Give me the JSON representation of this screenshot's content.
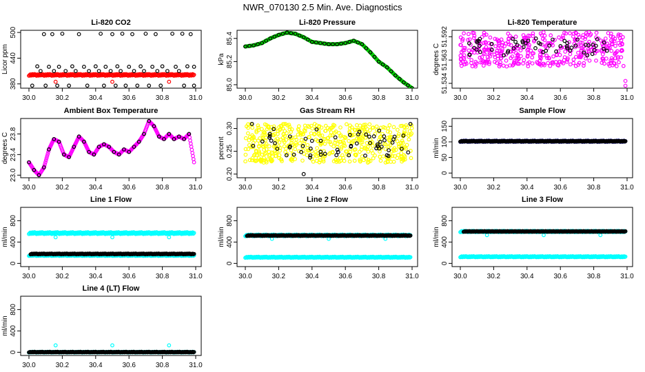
{
  "page": {
    "title": "NWR_070130  2.5 Min. Ave. Diagnostics"
  },
  "chart_data": [
    {
      "id": "co2",
      "title": "Li-820 CO2",
      "ylabel": "Licor ppm",
      "type": "scatter",
      "xlim": [
        30.0,
        31.0
      ],
      "ylim": [
        370,
        505
      ],
      "xticks": [
        "30.0",
        "30.2",
        "30.4",
        "30.6",
        "30.8",
        "31.0"
      ],
      "yticks": [
        {
          "v": 380,
          "t": "380"
        },
        {
          "v": 440,
          "t": "440"
        },
        {
          "v": 500,
          "t": "500"
        }
      ],
      "rotate_y": true,
      "series": [
        {
          "color": "#ff0000",
          "type": "band",
          "x0": 30.0,
          "x1": 30.99,
          "y0": 399,
          "y1": 403
        },
        {
          "color": "#ff0000",
          "type": "points",
          "x": [
            30.16,
            30.5,
            30.84
          ],
          "y": [
            385,
            385,
            385
          ]
        },
        {
          "color": "#000000",
          "type": "points",
          "x": [
            30.09,
            30.14,
            30.2,
            30.3,
            30.43,
            30.5,
            30.56,
            30.62,
            30.7,
            30.76,
            30.86,
            30.92,
            30.97,
            30.05,
            30.12,
            30.18,
            30.26,
            30.33,
            30.4,
            30.46,
            30.53,
            30.6,
            30.67,
            30.74,
            30.8,
            30.88,
            30.95,
            30.99,
            30.07,
            30.15,
            30.22,
            30.28,
            30.36,
            30.42,
            30.49,
            30.55,
            30.63,
            30.69,
            30.77,
            30.83,
            30.9,
            30.02,
            30.1,
            30.17,
            30.24,
            30.35,
            30.45,
            30.52,
            30.58,
            30.65,
            30.72,
            30.79,
            30.93,
            30.99
          ],
          "y": [
            496,
            496,
            497,
            496,
            497,
            496,
            497,
            496,
            497,
            496,
            497,
            497,
            496,
            421,
            420,
            420,
            421,
            420,
            421,
            420,
            421,
            420,
            421,
            420,
            421,
            420,
            421,
            420,
            410,
            410,
            410,
            410,
            410,
            410,
            410,
            410,
            410,
            410,
            410,
            410,
            410,
            376,
            376,
            376,
            376,
            376,
            376,
            376,
            376,
            376,
            376,
            376,
            376,
            376
          ]
        }
      ]
    },
    {
      "id": "pressure",
      "title": "Li-820 Pressure",
      "ylabel": "kPa",
      "type": "line-scatter",
      "xlim": [
        30.0,
        31.0
      ],
      "ylim": [
        84.97,
        85.47
      ],
      "xticks": [
        "30.0",
        "30.2",
        "30.4",
        "30.6",
        "30.8",
        "31.0"
      ],
      "yticks": [
        {
          "v": 85.0,
          "t": "85.0"
        },
        {
          "v": 85.2,
          "t": "85.2"
        },
        {
          "v": 85.4,
          "t": "85.4"
        }
      ],
      "rotate_y": true,
      "series": [
        {
          "color": "#00cc00",
          "type": "curve",
          "x": [
            30.0,
            30.05,
            30.1,
            30.15,
            30.2,
            30.25,
            30.3,
            30.35,
            30.4,
            30.45,
            30.5,
            30.55,
            30.6,
            30.65,
            30.7,
            30.75,
            30.8,
            30.85,
            30.9,
            30.95,
            31.0
          ],
          "y": [
            85.33,
            85.34,
            85.36,
            85.4,
            85.43,
            85.45,
            85.44,
            85.41,
            85.37,
            85.36,
            85.35,
            85.35,
            85.36,
            85.38,
            85.35,
            85.28,
            85.2,
            85.15,
            85.08,
            85.02,
            84.97
          ]
        },
        {
          "color": "#000000",
          "type": "sample-curve",
          "step": 0.025
        }
      ]
    },
    {
      "id": "temperature",
      "title": "Li-820 Temperature",
      "ylabel": "degrees C",
      "type": "scatter",
      "xlim": [
        30.0,
        31.0
      ],
      "ylim": [
        51.528,
        51.6
      ],
      "xticks": [
        "30.0",
        "30.2",
        "30.4",
        "30.6",
        "30.8",
        "31.0"
      ],
      "yticks": [
        {
          "v": 51.534,
          "t": "51.534"
        },
        {
          "v": 51.563,
          "t": "51.563"
        },
        {
          "v": 51.592,
          "t": "51.592"
        }
      ],
      "rotate_y": true,
      "series": [
        {
          "color": "#ff00ff",
          "type": "noise-band",
          "x0": 30.0,
          "x1": 30.98,
          "n": 420,
          "y0": 51.555,
          "y1": 51.598,
          "seed": 7
        },
        {
          "color": "#000000",
          "type": "noise-band",
          "x0": 30.02,
          "x1": 30.97,
          "n": 55,
          "y0": 51.568,
          "y1": 51.59,
          "seed": 11
        },
        {
          "color": "#ff00ff",
          "type": "points",
          "x": [
            30.99,
            30.99
          ],
          "y": [
            51.537,
            51.531
          ]
        }
      ]
    },
    {
      "id": "box-temp",
      "title": "Ambient Box Temperature",
      "ylabel": "degrees C",
      "type": "line-scatter",
      "xlim": [
        30.0,
        31.0
      ],
      "ylim": [
        22.95,
        24.1
      ],
      "xticks": [
        "30.0",
        "30.2",
        "30.4",
        "30.6",
        "30.8",
        "31.0"
      ],
      "yticks": [
        {
          "v": 23.0,
          "t": "23.0"
        },
        {
          "v": 23.4,
          "t": "23.4"
        },
        {
          "v": 23.8,
          "t": "23.8"
        }
      ],
      "rotate_y": true,
      "series": [
        {
          "color": "#ff00ff",
          "type": "curve",
          "x": [
            30.0,
            30.03,
            30.06,
            30.09,
            30.12,
            30.15,
            30.18,
            30.21,
            30.24,
            30.27,
            30.3,
            30.33,
            30.36,
            30.39,
            30.42,
            30.45,
            30.48,
            30.51,
            30.54,
            30.57,
            30.6,
            30.63,
            30.66,
            30.69,
            30.72,
            30.75,
            30.78,
            30.81,
            30.84,
            30.87,
            30.9,
            30.93,
            30.96,
            30.99
          ],
          "y": [
            23.25,
            23.1,
            23.0,
            23.15,
            23.5,
            23.7,
            23.65,
            23.4,
            23.35,
            23.55,
            23.75,
            23.65,
            23.45,
            23.4,
            23.55,
            23.6,
            23.55,
            23.45,
            23.4,
            23.5,
            23.45,
            23.55,
            23.65,
            23.8,
            24.05,
            23.95,
            23.75,
            23.7,
            23.8,
            23.7,
            23.75,
            23.7,
            23.8,
            23.25
          ]
        },
        {
          "color": "#000000",
          "type": "sample-curve",
          "step": 0.03
        }
      ]
    },
    {
      "id": "rh",
      "title": "Gas Stream RH",
      "ylabel": "percent",
      "type": "scatter",
      "xlim": [
        30.0,
        31.0
      ],
      "ylim": [
        0.192,
        0.322
      ],
      "xticks": [
        "30.0",
        "30.2",
        "30.4",
        "30.6",
        "30.8",
        "31.0"
      ],
      "yticks": [
        {
          "v": 0.2,
          "t": "0.20"
        },
        {
          "v": 0.25,
          "t": "0.25"
        },
        {
          "v": 0.3,
          "t": "0.30"
        }
      ],
      "rotate_y": true,
      "series": [
        {
          "color": "#ffff00",
          "type": "noise-band",
          "x0": 30.0,
          "x1": 31.0,
          "n": 520,
          "y0": 0.225,
          "y1": 0.31,
          "seed": 3
        },
        {
          "color": "#000000",
          "type": "noise-band",
          "x0": 30.02,
          "x1": 30.99,
          "n": 60,
          "y0": 0.235,
          "y1": 0.3,
          "seed": 5
        },
        {
          "color": "#000000",
          "type": "points",
          "x": [
            30.35,
            30.04,
            30.99
          ],
          "y": [
            0.2,
            0.31,
            0.31
          ]
        }
      ]
    },
    {
      "id": "sample-flow",
      "title": "Sample Flow",
      "ylabel": "ml/min",
      "type": "scatter",
      "xlim": [
        30.0,
        31.0
      ],
      "ylim": [
        -15,
        175
      ],
      "xticks": [
        "30.0",
        "30.2",
        "30.4",
        "30.6",
        "30.8",
        "31.0"
      ],
      "yticks": [
        {
          "v": 0,
          "t": "0"
        },
        {
          "v": 50,
          "t": "50"
        },
        {
          "v": 100,
          "t": "100"
        },
        {
          "v": 150,
          "t": "150"
        }
      ],
      "rotate_y": true,
      "series": [
        {
          "color": "#00008b",
          "type": "band",
          "x0": 30.0,
          "x1": 30.99,
          "y0": 100,
          "y1": 104
        },
        {
          "color": "#000000",
          "type": "band",
          "x0": 30.0,
          "x1": 30.99,
          "y0": 101,
          "y1": 103
        }
      ]
    },
    {
      "id": "line1",
      "title": "Line 1 Flow",
      "ylabel": "ml/min",
      "type": "scatter",
      "xlim": [
        30.0,
        31.0
      ],
      "ylim": [
        -60,
        1050
      ],
      "xticks": [
        "30.0",
        "30.2",
        "30.4",
        "30.6",
        "30.8",
        "31.0"
      ],
      "yticks": [
        {
          "v": 0,
          "t": "0"
        },
        {
          "v": 400,
          "t": "400"
        },
        {
          "v": 800,
          "t": "800"
        }
      ],
      "rotate_y": true,
      "series": [
        {
          "color": "#00ffff",
          "type": "band",
          "x0": 30.0,
          "x1": 30.99,
          "y0": 550,
          "y1": 585
        },
        {
          "color": "#00ffff",
          "type": "points",
          "x": [
            30.16,
            30.5,
            30.84
          ],
          "y": [
            490,
            490,
            490
          ]
        },
        {
          "color": "#00ffff",
          "type": "band",
          "x0": 30.0,
          "x1": 30.99,
          "y0": 140,
          "y1": 160
        },
        {
          "color": "#000000",
          "type": "band",
          "x0": 30.01,
          "x1": 30.99,
          "y0": 170,
          "y1": 185
        }
      ]
    },
    {
      "id": "line2",
      "title": "Line 2 Flow",
      "ylabel": "ml/min",
      "type": "scatter",
      "xlim": [
        30.0,
        31.0
      ],
      "ylim": [
        -60,
        1050
      ],
      "xticks": [
        "30.0",
        "30.2",
        "30.4",
        "30.6",
        "30.8",
        "31.0"
      ],
      "yticks": [
        {
          "v": 0,
          "t": "0"
        },
        {
          "v": 400,
          "t": "400"
        },
        {
          "v": 800,
          "t": "800"
        }
      ],
      "rotate_y": true,
      "series": [
        {
          "color": "#00ffff",
          "type": "band",
          "x0": 30.0,
          "x1": 30.99,
          "y0": 510,
          "y1": 540
        },
        {
          "color": "#00ffff",
          "type": "points",
          "x": [
            30.16,
            30.5,
            30.84
          ],
          "y": [
            460,
            460,
            460
          ]
        },
        {
          "color": "#00ffff",
          "type": "band",
          "x0": 30.0,
          "x1": 30.99,
          "y0": 105,
          "y1": 125
        },
        {
          "color": "#000000",
          "type": "band",
          "x0": 30.01,
          "x1": 30.99,
          "y0": 515,
          "y1": 530
        }
      ]
    },
    {
      "id": "line3",
      "title": "Line 3 Flow",
      "ylabel": "ml/min",
      "type": "scatter",
      "xlim": [
        30.0,
        31.0
      ],
      "ylim": [
        -60,
        1050
      ],
      "xticks": [
        "30.0",
        "30.2",
        "30.4",
        "30.6",
        "30.8",
        "31.0"
      ],
      "yticks": [
        {
          "v": 0,
          "t": "0"
        },
        {
          "v": 400,
          "t": "400"
        },
        {
          "v": 800,
          "t": "800"
        }
      ],
      "rotate_y": true,
      "series": [
        {
          "color": "#00ffff",
          "type": "band",
          "x0": 30.0,
          "x1": 30.99,
          "y0": 585,
          "y1": 610
        },
        {
          "color": "#00ffff",
          "type": "points",
          "x": [
            30.16,
            30.5,
            30.84
          ],
          "y": [
            530,
            530,
            530
          ]
        },
        {
          "color": "#00ffff",
          "type": "band",
          "x0": 30.0,
          "x1": 30.99,
          "y0": 115,
          "y1": 135
        },
        {
          "color": "#000000",
          "type": "band",
          "x0": 30.02,
          "x1": 30.99,
          "y0": 592,
          "y1": 605
        }
      ]
    },
    {
      "id": "line4",
      "title": "Line 4 (LT) Flow",
      "ylabel": "ml/min",
      "type": "scatter",
      "xlim": [
        30.0,
        31.0
      ],
      "ylim": [
        -60,
        1050
      ],
      "xticks": [
        "30.0",
        "30.2",
        "30.4",
        "30.6",
        "30.8",
        "31.0"
      ],
      "yticks": [
        {
          "v": 0,
          "t": "0"
        },
        {
          "v": 400,
          "t": "400"
        },
        {
          "v": 800,
          "t": "800"
        }
      ],
      "rotate_y": true,
      "series": [
        {
          "color": "#00ffff",
          "type": "band",
          "x0": 30.0,
          "x1": 30.99,
          "y0": -5,
          "y1": 10
        },
        {
          "color": "#000000",
          "type": "band",
          "x0": 30.0,
          "x1": 30.99,
          "y0": -2,
          "y1": 8
        },
        {
          "color": "#00ffff",
          "type": "points",
          "x": [
            30.16,
            30.5,
            30.84
          ],
          "y": [
            130,
            130,
            130
          ]
        }
      ]
    }
  ]
}
